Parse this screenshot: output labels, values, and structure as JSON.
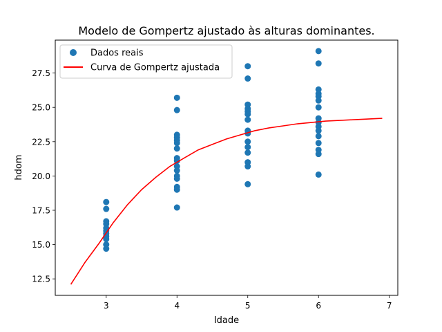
{
  "chart_data": {
    "type": "scatter",
    "title": "Modelo de Gompertz ajustado às alturas dominantes.",
    "xlabel": "Idade",
    "ylabel": "hdom",
    "xlim": [
      2.28,
      7.12
    ],
    "ylim": [
      11.3,
      29.9
    ],
    "xticks": [
      3,
      4,
      5,
      6,
      7
    ],
    "yticks": [
      12.5,
      15.0,
      17.5,
      20.0,
      22.5,
      25.0,
      27.5
    ],
    "ytick_labels": [
      "12.5",
      "15.0",
      "17.5",
      "20.0",
      "22.5",
      "25.0",
      "27.5"
    ],
    "grid": false,
    "legend_position": "top-left",
    "series": [
      {
        "name": "Dados reais",
        "kind": "scatter",
        "color": "#1f77b4",
        "points": [
          [
            3,
            18.1
          ],
          [
            3,
            17.6
          ],
          [
            3,
            16.7
          ],
          [
            3,
            16.5
          ],
          [
            3,
            16.2
          ],
          [
            3,
            16.0
          ],
          [
            3,
            15.8
          ],
          [
            3,
            15.6
          ],
          [
            3,
            15.4
          ],
          [
            3,
            15.0
          ],
          [
            3,
            14.7
          ],
          [
            4,
            25.7
          ],
          [
            4,
            24.8
          ],
          [
            4,
            23.0
          ],
          [
            4,
            22.8
          ],
          [
            4,
            22.6
          ],
          [
            4,
            22.4
          ],
          [
            4,
            22.0
          ],
          [
            4,
            21.3
          ],
          [
            4,
            21.1
          ],
          [
            4,
            20.7
          ],
          [
            4,
            20.4
          ],
          [
            4,
            20.0
          ],
          [
            4,
            19.8
          ],
          [
            4,
            19.2
          ],
          [
            4,
            19.0
          ],
          [
            4,
            17.7
          ],
          [
            5,
            28.0
          ],
          [
            5,
            27.1
          ],
          [
            5,
            25.2
          ],
          [
            5,
            24.9
          ],
          [
            5,
            24.7
          ],
          [
            5,
            24.5
          ],
          [
            5,
            24.1
          ],
          [
            5,
            23.3
          ],
          [
            5,
            23.1
          ],
          [
            5,
            22.5
          ],
          [
            5,
            22.1
          ],
          [
            5,
            21.7
          ],
          [
            5,
            21.0
          ],
          [
            5,
            20.7
          ],
          [
            5,
            19.4
          ],
          [
            6,
            29.1
          ],
          [
            6,
            28.2
          ],
          [
            6,
            26.3
          ],
          [
            6,
            26.0
          ],
          [
            6,
            25.8
          ],
          [
            6,
            25.5
          ],
          [
            6,
            25.0
          ],
          [
            6,
            24.2
          ],
          [
            6,
            23.9
          ],
          [
            6,
            23.6
          ],
          [
            6,
            23.3
          ],
          [
            6,
            22.9
          ],
          [
            6,
            22.4
          ],
          [
            6,
            21.9
          ],
          [
            6,
            21.6
          ],
          [
            6,
            20.1
          ]
        ]
      },
      {
        "name": "Curva de Gompertz ajustada",
        "kind": "line",
        "color": "#ff0000",
        "points": [
          [
            2.5,
            12.1
          ],
          [
            2.7,
            13.7
          ],
          [
            2.9,
            15.1
          ],
          [
            3.1,
            16.6
          ],
          [
            3.3,
            17.9
          ],
          [
            3.5,
            19.0
          ],
          [
            3.7,
            19.9
          ],
          [
            3.9,
            20.7
          ],
          [
            4.1,
            21.3
          ],
          [
            4.3,
            21.9
          ],
          [
            4.5,
            22.3
          ],
          [
            4.7,
            22.7
          ],
          [
            4.9,
            23.0
          ],
          [
            5.1,
            23.3
          ],
          [
            5.3,
            23.5
          ],
          [
            5.5,
            23.65
          ],
          [
            5.7,
            23.8
          ],
          [
            5.9,
            23.9
          ],
          [
            6.1,
            24.0
          ],
          [
            6.3,
            24.05
          ],
          [
            6.5,
            24.1
          ],
          [
            6.7,
            24.15
          ],
          [
            6.9,
            24.2
          ]
        ]
      }
    ]
  }
}
